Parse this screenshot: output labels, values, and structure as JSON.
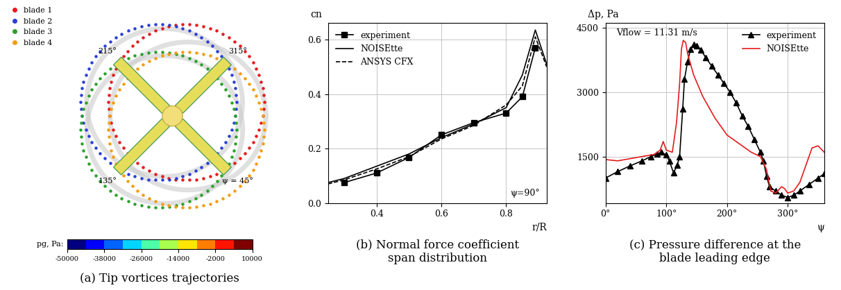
{
  "tip_vortices": {
    "caption": "(a) Tip vortices trajectories",
    "legend": [
      {
        "name": "blade 1",
        "color": "#e41a1c"
      },
      {
        "name": "blade 2",
        "color": "#2b3fd6"
      },
      {
        "name": "blade 3",
        "color": "#2ca02c"
      },
      {
        "name": "blade 4",
        "color": "#f39c12"
      }
    ],
    "angle_labels": [
      "315°",
      "215°",
      "135°",
      "ψ = 45°"
    ],
    "colorbar": {
      "label": "pg, Pa:",
      "range": [
        -50000,
        10000
      ],
      "ticks": [
        -50000,
        -38000,
        -26000,
        -14000,
        -2000,
        10000
      ]
    }
  },
  "chart_data": [
    {
      "type": "line",
      "caption": "(b) Normal force coefficient\nspan distribution",
      "x_label": "r/R",
      "y_label": "cn",
      "annotation": "ψ=90°",
      "xlim": [
        0.25,
        0.925
      ],
      "xticks": [
        0.4,
        0.6,
        0.8
      ],
      "ylim": [
        0,
        0.66
      ],
      "yticks": [
        {
          "value": 0,
          "label": "0.0"
        },
        0.2,
        0.4,
        0.6
      ],
      "grid": true,
      "legend": "upper left",
      "series": [
        {
          "name": "experiment",
          "color": "#000000",
          "marker": "square",
          "line_style": "solid",
          "x": [
            0.3,
            0.4,
            0.5,
            0.6,
            0.7,
            0.8,
            0.85,
            0.89
          ],
          "values": [
            0.075,
            0.11,
            0.167,
            0.25,
            0.295,
            0.33,
            0.39,
            0.57
          ]
        },
        {
          "name": "NOISEtte",
          "color": "#000000",
          "marker": "none",
          "line_style": "solid",
          "x": [
            0.25,
            0.3,
            0.4,
            0.5,
            0.6,
            0.7,
            0.8,
            0.85,
            0.89,
            0.925
          ],
          "values": [
            0.075,
            0.09,
            0.135,
            0.18,
            0.24,
            0.29,
            0.35,
            0.47,
            0.635,
            0.51
          ]
        },
        {
          "name": "ANSYS CFX",
          "color": "#000000",
          "marker": "none",
          "line_style": "dashed",
          "x": [
            0.25,
            0.3,
            0.4,
            0.5,
            0.6,
            0.7,
            0.8,
            0.85,
            0.89,
            0.925
          ],
          "values": [
            0.07,
            0.085,
            0.125,
            0.17,
            0.235,
            0.285,
            0.36,
            0.43,
            0.61,
            0.5
          ]
        }
      ]
    },
    {
      "type": "line",
      "caption": "(c) Pressure difference at the\nblade leading edge",
      "x_label": "ψ",
      "y_label": "Δp, Pa",
      "annotation": "Vflow = 11.31 m/s",
      "xlim": [
        0,
        360
      ],
      "xticks": [
        {
          "value": 0,
          "label": "0°"
        },
        {
          "value": 100,
          "label": "100°"
        },
        {
          "value": 200,
          "label": "200°"
        },
        {
          "value": 300,
          "label": "300°"
        }
      ],
      "ylim": [
        420,
        4600
      ],
      "yticks": [
        1500,
        3000,
        4500
      ],
      "grid": true,
      "legend": "upper right",
      "series": [
        {
          "name": "experiment",
          "color": "#000000",
          "marker": "triangle",
          "line_style": "solid",
          "x": [
            0,
            20,
            40,
            60,
            75,
            85,
            92,
            100,
            105,
            112,
            118,
            122,
            127,
            130,
            135,
            140,
            145,
            150,
            157,
            165,
            175,
            185,
            195,
            205,
            215,
            225,
            235,
            245,
            255,
            260,
            265,
            270,
            280,
            290,
            300,
            310,
            320,
            335,
            350,
            360
          ],
          "values": [
            1000,
            1150,
            1280,
            1400,
            1500,
            1560,
            1600,
            1540,
            1400,
            1120,
            1300,
            1500,
            2600,
            3300,
            3700,
            4000,
            4100,
            4080,
            3980,
            3800,
            3600,
            3400,
            3200,
            3000,
            2750,
            2450,
            2200,
            1900,
            1600,
            1400,
            1050,
            800,
            700,
            600,
            550,
            600,
            700,
            850,
            1000,
            1100
          ]
        },
        {
          "name": "NOISEtte",
          "color": "#e41a1c",
          "marker": "none",
          "line_style": "solid",
          "x": [
            0,
            20,
            40,
            60,
            80,
            90,
            95,
            100,
            110,
            117,
            122,
            125,
            128,
            132,
            135,
            145,
            160,
            180,
            200,
            220,
            240,
            255,
            265,
            272,
            280,
            290,
            295,
            300,
            310,
            320,
            330,
            340,
            350,
            360
          ],
          "values": [
            1430,
            1400,
            1450,
            1500,
            1550,
            1650,
            1850,
            1650,
            1600,
            2300,
            3200,
            4000,
            4200,
            4150,
            3900,
            3400,
            2900,
            2400,
            2000,
            1800,
            1600,
            1500,
            1200,
            700,
            650,
            800,
            750,
            650,
            700,
            900,
            1300,
            1700,
            1750,
            1600
          ]
        }
      ]
    }
  ]
}
